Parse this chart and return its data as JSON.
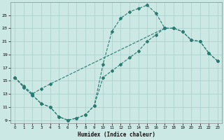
{
  "xlabel": "Humidex (Indice chaleur)",
  "xlim": [
    -0.5,
    23.5
  ],
  "ylim": [
    8.5,
    27
  ],
  "yticks": [
    9,
    11,
    13,
    15,
    17,
    19,
    21,
    23,
    25
  ],
  "xticks": [
    0,
    1,
    2,
    3,
    4,
    5,
    6,
    7,
    8,
    9,
    10,
    11,
    12,
    13,
    14,
    15,
    16,
    17,
    18,
    19,
    20,
    21,
    22,
    23
  ],
  "bg_color": "#cce8e4",
  "grid_color": "#aacfcb",
  "line_color": "#2a7a70",
  "curve_a_x": [
    0,
    1,
    2,
    3,
    4,
    5,
    6,
    7,
    8,
    9,
    10,
    11,
    12,
    13,
    14,
    15,
    16,
    17
  ],
  "curve_a_y": [
    15.5,
    14.0,
    12.8,
    11.5,
    11.0,
    9.5,
    9.0,
    9.3,
    9.8,
    11.2,
    17.5,
    22.5,
    24.5,
    25.5,
    26.0,
    26.5,
    25.3,
    23.0
  ],
  "curve_b_x": [
    0,
    1,
    2,
    3,
    4,
    17,
    18,
    19,
    20,
    21,
    22,
    23
  ],
  "curve_b_y": [
    15.5,
    14.2,
    13.0,
    13.8,
    14.5,
    23.0,
    23.0,
    22.5,
    21.2,
    21.0,
    19.2,
    18.0
  ],
  "curve_c_x": [
    0,
    1,
    2,
    3,
    4,
    5,
    6,
    7,
    8,
    9,
    10,
    11,
    12,
    13,
    14,
    15,
    16,
    17,
    18,
    19,
    20,
    21,
    22,
    23
  ],
  "curve_c_y": [
    15.5,
    14.0,
    12.8,
    11.5,
    11.0,
    9.5,
    9.0,
    9.3,
    9.8,
    11.2,
    15.5,
    16.5,
    17.5,
    18.5,
    19.5,
    21.0,
    22.0,
    23.0,
    23.0,
    22.5,
    21.2,
    21.0,
    19.2,
    18.0
  ]
}
